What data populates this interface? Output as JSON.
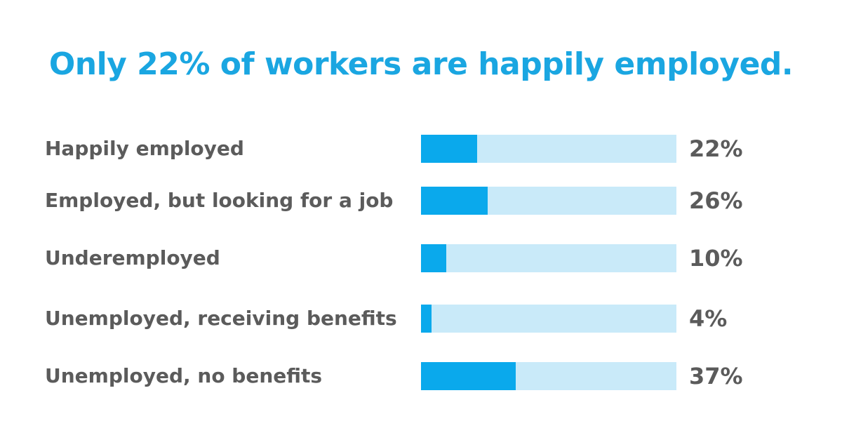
{
  "title": "Only 22% of workers are happily employed.",
  "colors": {
    "title": "#1aa6e1",
    "label": "#5b5b5b",
    "bar_fill": "#0aa9ec",
    "bar_track": "#c9eaf9"
  },
  "chart_data": {
    "type": "bar",
    "orientation": "horizontal",
    "categories": [
      "Happily employed",
      "Employed, but looking for a job",
      "Underemployed",
      "Unemployed, receiving benefits",
      "Unemployed, no benefits"
    ],
    "values": [
      22,
      26,
      10,
      4,
      37
    ],
    "value_labels": [
      "22%",
      "26%",
      "10%",
      "4%",
      "37%"
    ],
    "xlim": [
      0,
      100
    ],
    "grid": false,
    "legend": "none"
  }
}
